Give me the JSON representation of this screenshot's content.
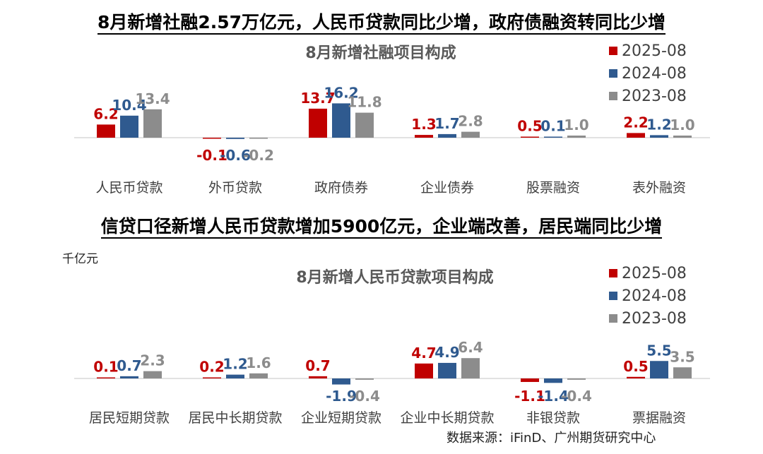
{
  "headlines": {
    "top": "8月新增社融2.57万亿元，人民币贷款同比少增，政府债融资转同比少增",
    "bottom": "信贷口径新增人民币贷款增加5900亿元，企业端改善，居民端同比少增"
  },
  "unit_label": "千亿元",
  "source": "数据来源：iFinD、广州期货研究中心",
  "colors": {
    "s2025": "#C00000",
    "s2024": "#2F5A8F",
    "s2023": "#8C8C8C"
  },
  "chart_data": [
    {
      "type": "bar",
      "title": "8月新增社融项目构成",
      "categories": [
        "人民币贷款",
        "外币贷款",
        "政府债券",
        "企业债券",
        "股票融资",
        "表外融资"
      ],
      "series": [
        {
          "name": "2025-08",
          "values": [
            6.2,
            -0.1,
            13.7,
            1.3,
            0.5,
            2.2
          ]
        },
        {
          "name": "2024-08",
          "values": [
            10.4,
            -0.6,
            16.2,
            1.7,
            0.1,
            1.2
          ]
        },
        {
          "name": "2023-08",
          "values": [
            13.4,
            -0.2,
            11.8,
            2.8,
            1.0,
            1.0
          ]
        }
      ],
      "value_labels": [
        [
          "6.2",
          "-0.1",
          "13.7",
          "1.3",
          "0.5",
          "2.2"
        ],
        [
          "10.4",
          "-0.6",
          "16.2",
          "1.7",
          "0.1",
          "1.2"
        ],
        [
          "13.4",
          "-0.2",
          "11.8",
          "2.8",
          "1.0",
          "1.0"
        ]
      ],
      "legend_position": "top-right",
      "grid": false
    },
    {
      "type": "bar",
      "title": "8月新增人民币贷款项目构成",
      "ylabel": "千亿元",
      "categories": [
        "居民短期贷款",
        "居民中长期贷款",
        "企业短期贷款",
        "企业中长期贷款",
        "非银贷款",
        "票据融资"
      ],
      "series": [
        {
          "name": "2025-08",
          "values": [
            0.1,
            0.2,
            0.7,
            4.7,
            -1.1,
            0.5
          ]
        },
        {
          "name": "2024-08",
          "values": [
            0.7,
            1.2,
            -1.9,
            4.9,
            -1.4,
            5.5
          ]
        },
        {
          "name": "2023-08",
          "values": [
            2.3,
            1.6,
            -0.4,
            6.4,
            -0.4,
            3.5
          ]
        }
      ],
      "value_labels": [
        [
          "0.1",
          "0.2",
          "0.7",
          "4.7",
          "-1.1",
          "0.5"
        ],
        [
          "0.7",
          "1.2",
          "-1.9",
          "4.9",
          "-1.4",
          "5.5"
        ],
        [
          "2.3",
          "1.6",
          "-0.4",
          "6.4",
          "-0.4",
          "3.5"
        ]
      ],
      "legend_position": "top-right",
      "grid": false
    }
  ]
}
